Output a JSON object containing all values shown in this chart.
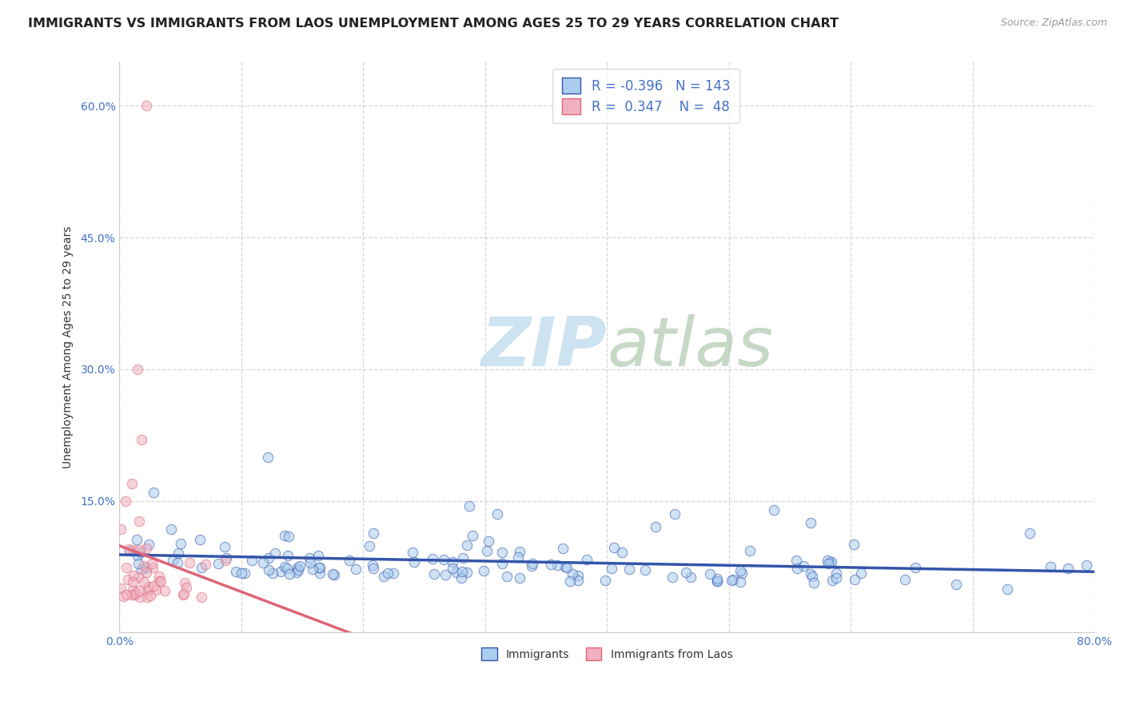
{
  "title": "IMMIGRANTS VS IMMIGRANTS FROM LAOS UNEMPLOYMENT AMONG AGES 25 TO 29 YEARS CORRELATION CHART",
  "source": "Source: ZipAtlas.com",
  "ylabel": "Unemployment Among Ages 25 to 29 years",
  "xlim": [
    0.0,
    0.8
  ],
  "ylim": [
    0.0,
    0.65
  ],
  "x_ticks": [
    0.0,
    0.1,
    0.2,
    0.3,
    0.4,
    0.5,
    0.6,
    0.7,
    0.8
  ],
  "x_tick_labels": [
    "0.0%",
    "",
    "",
    "",
    "",
    "",
    "",
    "",
    "80.0%"
  ],
  "y_ticks": [
    0.0,
    0.15,
    0.3,
    0.45,
    0.6
  ],
  "y_tick_labels": [
    "",
    "15.0%",
    "30.0%",
    "45.0%",
    "60.0%"
  ],
  "legend_R1": "-0.396",
  "legend_N1": "143",
  "legend_R2": "0.347",
  "legend_N2": "48",
  "color_immigrants": "#aaccee",
  "color_laos": "#f0b0c0",
  "line_color_immigrants": "#3355aa",
  "line_color_laos": "#dd6677",
  "watermark_color": "#c8e0f0",
  "title_fontsize": 11.5,
  "label_fontsize": 10,
  "tick_fontsize": 10,
  "scatter_size": 80,
  "scatter_alpha": 0.55
}
